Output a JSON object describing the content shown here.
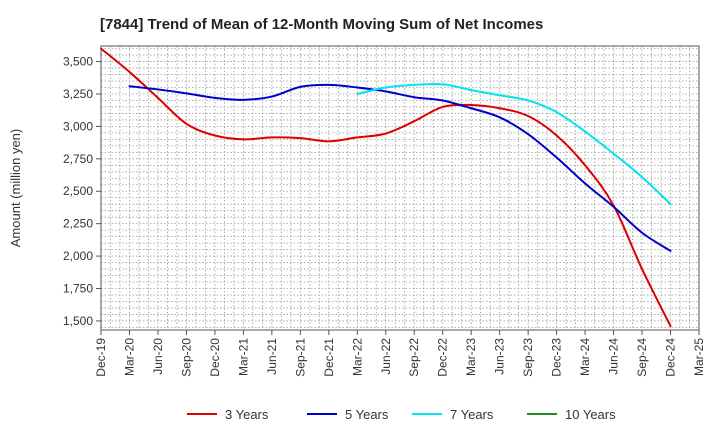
{
  "chart_data": {
    "type": "line",
    "title": "[7844]  Trend of Mean of 12-Month Moving Sum of Net Incomes",
    "xlabel": "",
    "ylabel": "Amount (million yen)",
    "categories": [
      "Dec-19",
      "Mar-20",
      "Jun-20",
      "Sep-20",
      "Dec-20",
      "Mar-21",
      "Jun-21",
      "Sep-21",
      "Dec-21",
      "Mar-22",
      "Jun-22",
      "Sep-22",
      "Dec-22",
      "Mar-23",
      "Jun-23",
      "Sep-23",
      "Dec-23",
      "Mar-24",
      "Jun-24",
      "Sep-24",
      "Dec-24",
      "Mar-25"
    ],
    "ylim": [
      1430,
      3620
    ],
    "yticks": [
      1500,
      1750,
      2000,
      2250,
      2500,
      2750,
      3000,
      3250,
      3500
    ],
    "ytick_labels": [
      "1,500",
      "1,750",
      "2,000",
      "2,250",
      "2,500",
      "2,750",
      "3,000",
      "3,250",
      "3,500"
    ],
    "grid": true,
    "legend_position": "bottom",
    "series": [
      {
        "name": "3 Years",
        "color": "#dd0000",
        "values": [
          3600,
          3420,
          3220,
          3020,
          2930,
          2900,
          2915,
          2910,
          2885,
          2915,
          2945,
          3040,
          3150,
          3165,
          3140,
          3080,
          2930,
          2700,
          2390,
          1900,
          1460,
          null
        ]
      },
      {
        "name": "5 Years",
        "color": "#0000cc",
        "values": [
          null,
          3310,
          3285,
          3255,
          3220,
          3205,
          3230,
          3305,
          3320,
          3300,
          3270,
          3225,
          3200,
          3140,
          3070,
          2940,
          2760,
          2560,
          2380,
          2180,
          2040,
          null
        ]
      },
      {
        "name": "7 Years",
        "color": "#00e5ee",
        "values": [
          null,
          null,
          null,
          null,
          null,
          null,
          null,
          null,
          null,
          3250,
          3300,
          3320,
          3325,
          3280,
          3240,
          3200,
          3110,
          2960,
          2790,
          2610,
          2400,
          null
        ]
      },
      {
        "name": "10 Years",
        "color": "#228b22",
        "values": [
          null,
          null,
          null,
          null,
          null,
          null,
          null,
          null,
          null,
          null,
          null,
          null,
          null,
          null,
          null,
          null,
          null,
          null,
          null,
          null,
          null,
          null
        ]
      }
    ]
  }
}
